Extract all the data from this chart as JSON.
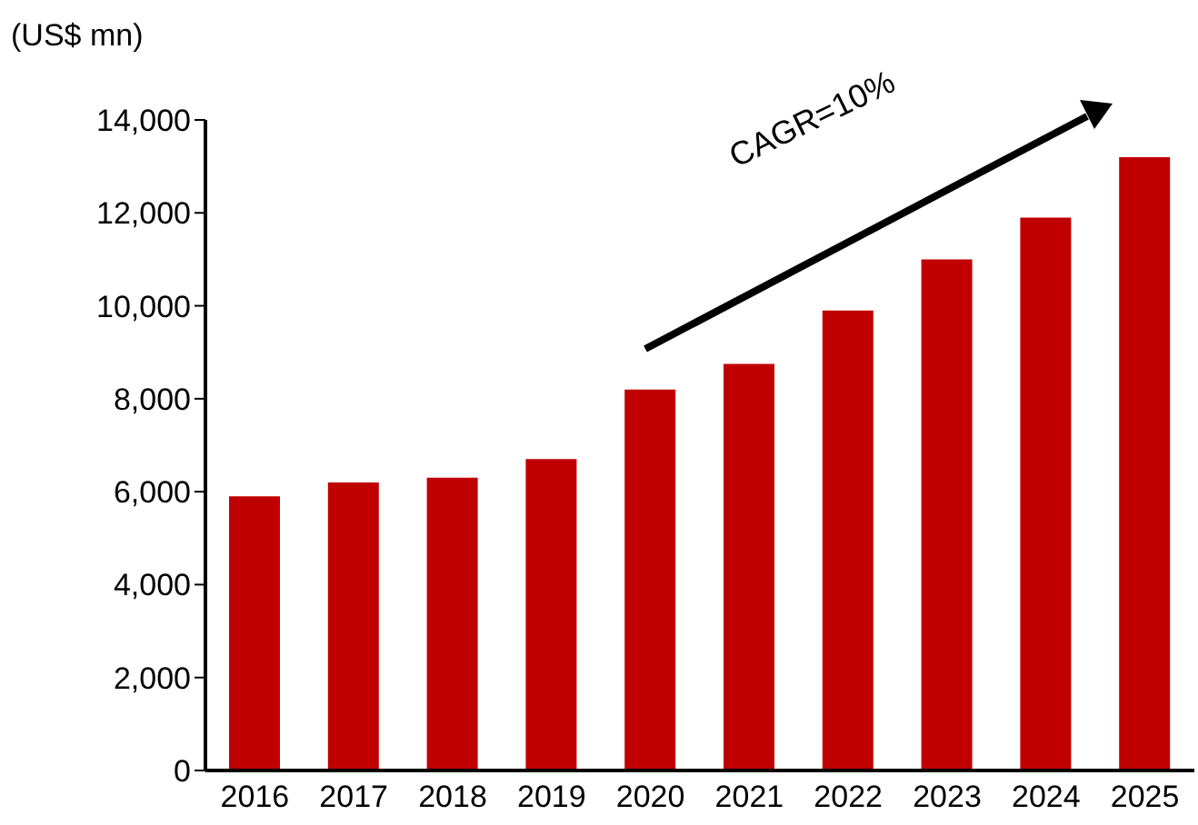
{
  "chart_data": {
    "type": "bar",
    "ylabel": "(US$ mn)",
    "categories": [
      "2016",
      "2017",
      "2018",
      "2019",
      "2020",
      "2021",
      "2022",
      "2023",
      "2024",
      "2025"
    ],
    "values": [
      5900,
      6200,
      6300,
      6700,
      8200,
      8750,
      9900,
      11000,
      11900,
      13200
    ],
    "color": "#c00000",
    "ylim": [
      0,
      14000
    ],
    "yticks": [
      0,
      {
        "value": 2000,
        "label": "2,000"
      },
      {
        "value": 4000,
        "label": "4,000"
      },
      {
        "value": 6000,
        "label": "6,000"
      },
      {
        "value": 8000,
        "label": "8,000"
      },
      {
        "value": 10000,
        "label": "10,000"
      },
      {
        "value": 12000,
        "label": "12,000"
      },
      {
        "value": 14000,
        "label": "14,000"
      }
    ],
    "grid": false,
    "legend": false,
    "annotations": [
      "CAGR=10%"
    ]
  }
}
